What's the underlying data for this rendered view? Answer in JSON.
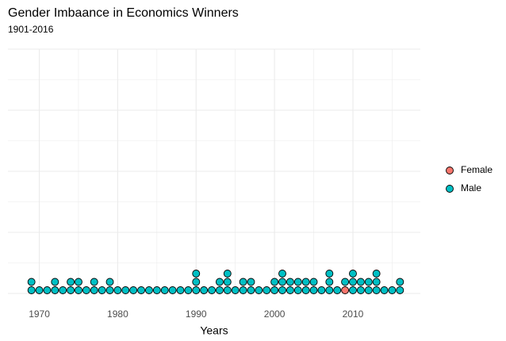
{
  "chart_data": {
    "type": "dotplot",
    "title": "Gender Imbaance in Economics Winners",
    "subtitle": "1901-2016",
    "x_label": "Years",
    "x": [
      1969,
      1970,
      1971,
      1972,
      1973,
      1974,
      1975,
      1976,
      1977,
      1978,
      1979,
      1980,
      1981,
      1982,
      1983,
      1984,
      1985,
      1986,
      1987,
      1988,
      1989,
      1990,
      1991,
      1992,
      1993,
      1994,
      1995,
      1996,
      1997,
      1998,
      1999,
      2000,
      2001,
      2002,
      2003,
      2004,
      2005,
      2006,
      2007,
      2008,
      2009,
      2010,
      2011,
      2012,
      2013,
      2014,
      2015,
      2016
    ],
    "series": [
      {
        "name": "Female",
        "color": "#F8766D",
        "values": [
          0,
          0,
          0,
          0,
          0,
          0,
          0,
          0,
          0,
          0,
          0,
          0,
          0,
          0,
          0,
          0,
          0,
          0,
          0,
          0,
          0,
          0,
          0,
          0,
          0,
          0,
          0,
          0,
          0,
          0,
          0,
          0,
          0,
          0,
          0,
          0,
          0,
          0,
          0,
          0,
          1,
          0,
          0,
          0,
          0,
          0,
          0,
          0
        ]
      },
      {
        "name": "Male",
        "color": "#00BFC4",
        "values": [
          2,
          1,
          1,
          2,
          1,
          2,
          2,
          1,
          2,
          1,
          2,
          1,
          1,
          1,
          1,
          1,
          1,
          1,
          1,
          1,
          1,
          3,
          1,
          1,
          2,
          3,
          1,
          2,
          2,
          1,
          1,
          2,
          3,
          2,
          2,
          2,
          2,
          1,
          3,
          1,
          1,
          3,
          2,
          2,
          3,
          1,
          1,
          2
        ]
      }
    ],
    "xlim": [
      1966,
      2018.6
    ],
    "xticks": [
      1970,
      1980,
      1990,
      2000,
      2010
    ],
    "grid": true,
    "legend": "right"
  }
}
